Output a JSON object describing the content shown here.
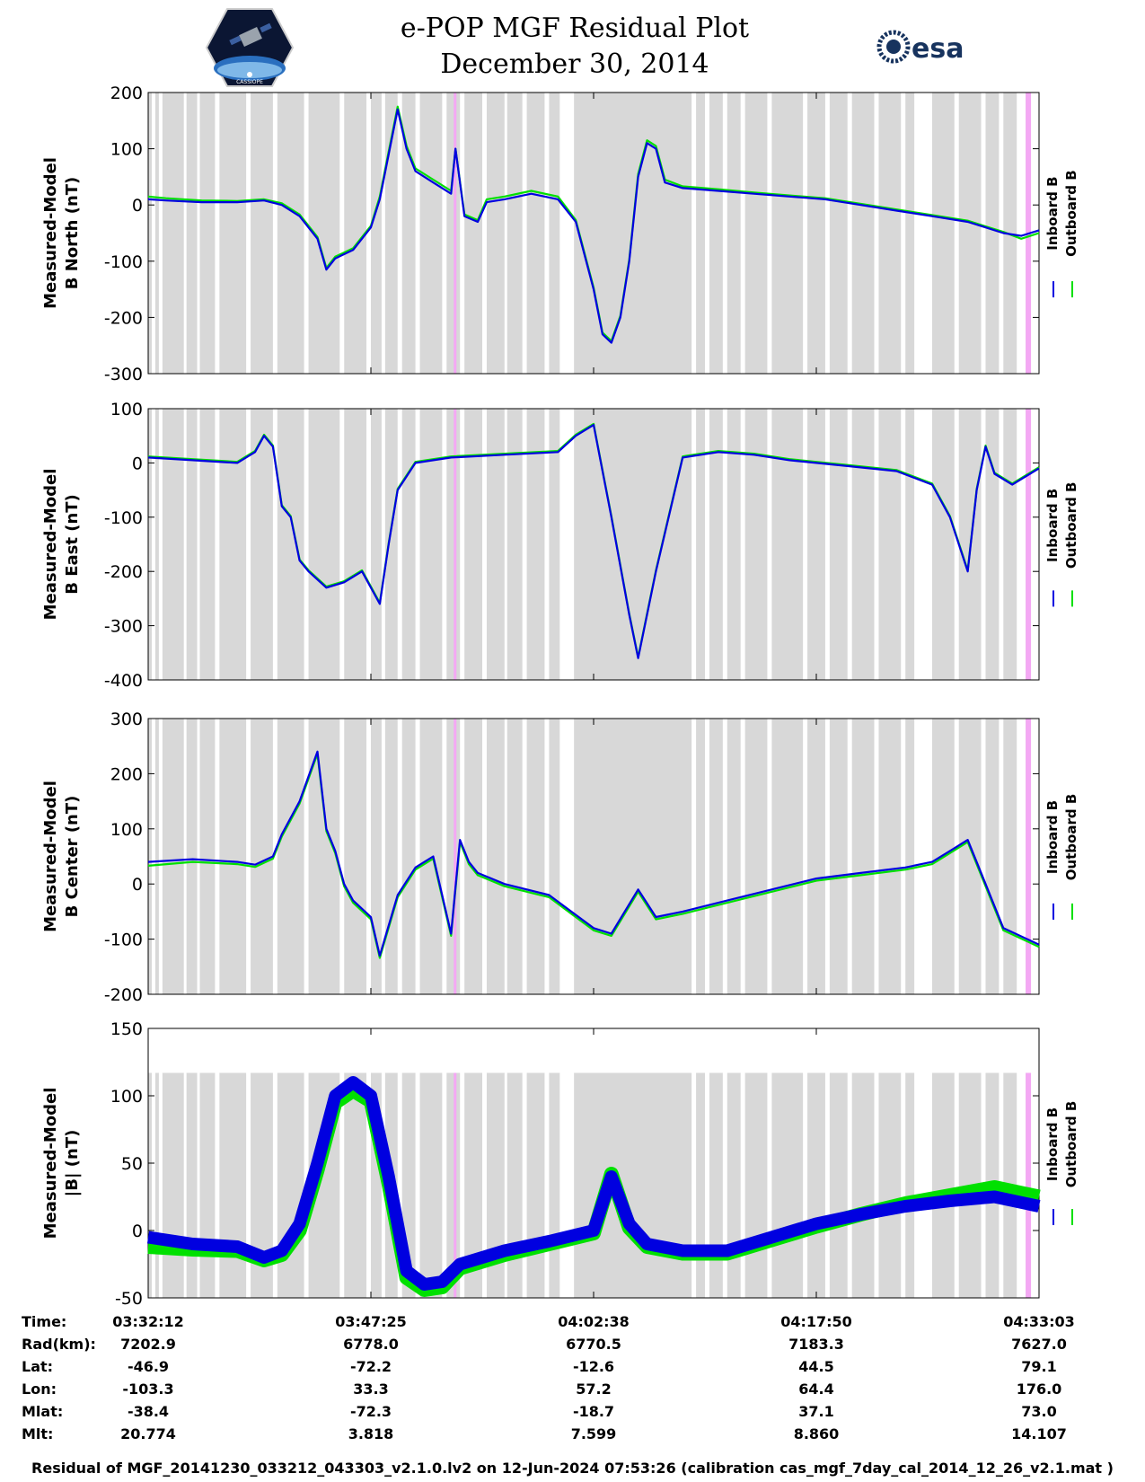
{
  "header": {
    "title_line1": "e-POP MGF Residual Plot",
    "title_line2": "December 30, 2014",
    "logo_left": "CASSIOPE",
    "logo_right": "esa"
  },
  "legend": {
    "inboard": "Inboard B",
    "outboard": "Outboard B"
  },
  "colors": {
    "inboard": "#0000e0",
    "outboard": "#00e000",
    "shade": "#d8d8d8",
    "pink": "#f4a8f4"
  },
  "chart_data": [
    {
      "type": "line",
      "ylabel_line1": "Measured-Model",
      "ylabel_line2": "B North (nT)",
      "ylim": [
        -300,
        200
      ],
      "yticks": [
        200,
        100,
        0,
        -100,
        -200,
        -300
      ],
      "series": [
        {
          "name": "Inboard B",
          "x": [
            0,
            0.02,
            0.06,
            0.1,
            0.13,
            0.15,
            0.17,
            0.19,
            0.2,
            0.21,
            0.23,
            0.25,
            0.26,
            0.27,
            0.28,
            0.29,
            0.3,
            0.32,
            0.34,
            0.345,
            0.355,
            0.37,
            0.38,
            0.4,
            0.43,
            0.46,
            0.48,
            0.5,
            0.51,
            0.52,
            0.53,
            0.54,
            0.55,
            0.56,
            0.57,
            0.58,
            0.6,
            0.64,
            0.68,
            0.72,
            0.76,
            0.8,
            0.84,
            0.88,
            0.92,
            0.94,
            0.96,
            0.98,
            1
          ],
          "values": [
            10,
            8,
            5,
            5,
            8,
            0,
            -20,
            -60,
            -115,
            -95,
            -80,
            -40,
            10,
            90,
            170,
            100,
            60,
            40,
            20,
            100,
            -20,
            -30,
            5,
            10,
            20,
            10,
            -30,
            -150,
            -230,
            -245,
            -200,
            -100,
            50,
            110,
            100,
            40,
            30,
            25,
            20,
            15,
            10,
            0,
            -10,
            -20,
            -30,
            -40,
            -50,
            -55,
            -45
          ]
        },
        {
          "name": "Outboard B",
          "x": [
            0,
            0.02,
            0.06,
            0.1,
            0.13,
            0.15,
            0.17,
            0.19,
            0.2,
            0.21,
            0.23,
            0.25,
            0.26,
            0.27,
            0.28,
            0.29,
            0.3,
            0.32,
            0.34,
            0.345,
            0.355,
            0.37,
            0.38,
            0.4,
            0.43,
            0.46,
            0.48,
            0.5,
            0.51,
            0.52,
            0.53,
            0.54,
            0.55,
            0.56,
            0.57,
            0.58,
            0.6,
            0.64,
            0.68,
            0.72,
            0.76,
            0.8,
            0.84,
            0.88,
            0.92,
            0.94,
            0.96,
            0.98,
            1
          ],
          "values": [
            15,
            12,
            8,
            7,
            10,
            3,
            -17,
            -57,
            -112,
            -92,
            -77,
            -37,
            15,
            95,
            175,
            105,
            65,
            45,
            25,
            100,
            -17,
            -27,
            10,
            15,
            25,
            15,
            -27,
            -147,
            -227,
            -242,
            -197,
            -97,
            55,
            115,
            105,
            45,
            33,
            28,
            22,
            17,
            12,
            2,
            -8,
            -18,
            -28,
            -38,
            -48,
            -60,
            -50
          ]
        }
      ]
    },
    {
      "type": "line",
      "ylabel_line1": "Measured-Model",
      "ylabel_line2": "B East (nT)",
      "ylim": [
        -400,
        100
      ],
      "yticks": [
        100,
        0,
        -100,
        -200,
        -300,
        -400
      ],
      "series": [
        {
          "name": "Inboard B",
          "x": [
            0,
            0.05,
            0.1,
            0.12,
            0.13,
            0.14,
            0.15,
            0.16,
            0.17,
            0.18,
            0.2,
            0.22,
            0.24,
            0.26,
            0.27,
            0.28,
            0.3,
            0.34,
            0.4,
            0.46,
            0.48,
            0.5,
            0.52,
            0.54,
            0.55,
            0.57,
            0.6,
            0.64,
            0.68,
            0.72,
            0.78,
            0.84,
            0.88,
            0.9,
            0.92,
            0.93,
            0.94,
            0.95,
            0.97,
            1
          ],
          "values": [
            10,
            5,
            0,
            20,
            50,
            30,
            -80,
            -100,
            -180,
            -200,
            -230,
            -220,
            -200,
            -260,
            -150,
            -50,
            0,
            10,
            15,
            20,
            50,
            70,
            -100,
            -280,
            -360,
            -200,
            10,
            20,
            15,
            5,
            -5,
            -15,
            -40,
            -100,
            -200,
            -50,
            30,
            -20,
            -40,
            -10
          ]
        },
        {
          "name": "Outboard B",
          "x": [
            0,
            0.05,
            0.1,
            0.12,
            0.13,
            0.14,
            0.15,
            0.16,
            0.17,
            0.18,
            0.2,
            0.22,
            0.24,
            0.26,
            0.27,
            0.28,
            0.3,
            0.34,
            0.4,
            0.46,
            0.48,
            0.5,
            0.52,
            0.54,
            0.55,
            0.57,
            0.6,
            0.64,
            0.68,
            0.72,
            0.78,
            0.84,
            0.88,
            0.9,
            0.92,
            0.93,
            0.94,
            0.95,
            0.97,
            1
          ],
          "values": [
            12,
            7,
            2,
            22,
            52,
            32,
            -78,
            -98,
            -178,
            -198,
            -228,
            -218,
            -198,
            -258,
            -148,
            -48,
            2,
            12,
            17,
            22,
            52,
            72,
            -98,
            -278,
            -358,
            -198,
            12,
            22,
            17,
            7,
            -3,
            -13,
            -38,
            -98,
            -198,
            -48,
            32,
            -18,
            -38,
            -8
          ]
        }
      ]
    },
    {
      "type": "line",
      "ylabel_line1": "Measured-Model",
      "ylabel_line2": "B Center (nT)",
      "ylim": [
        -200,
        300
      ],
      "yticks": [
        300,
        200,
        100,
        0,
        -100,
        -200
      ],
      "series": [
        {
          "name": "Inboard B",
          "x": [
            0,
            0.05,
            0.1,
            0.12,
            0.14,
            0.15,
            0.17,
            0.19,
            0.2,
            0.21,
            0.22,
            0.23,
            0.25,
            0.26,
            0.28,
            0.3,
            0.32,
            0.34,
            0.35,
            0.36,
            0.37,
            0.4,
            0.45,
            0.5,
            0.52,
            0.55,
            0.57,
            0.6,
            0.65,
            0.7,
            0.75,
            0.8,
            0.85,
            0.88,
            0.9,
            0.92,
            0.94,
            0.96,
            1
          ],
          "values": [
            40,
            45,
            40,
            35,
            50,
            90,
            150,
            240,
            100,
            60,
            0,
            -30,
            -60,
            -130,
            -20,
            30,
            50,
            -90,
            80,
            40,
            20,
            0,
            -20,
            -80,
            -90,
            -10,
            -60,
            -50,
            -30,
            -10,
            10,
            20,
            30,
            40,
            60,
            80,
            0,
            -80,
            -110
          ]
        },
        {
          "name": "Outboard B",
          "x": [
            0,
            0.05,
            0.1,
            0.12,
            0.14,
            0.15,
            0.17,
            0.19,
            0.2,
            0.21,
            0.22,
            0.23,
            0.25,
            0.26,
            0.28,
            0.3,
            0.32,
            0.34,
            0.35,
            0.36,
            0.37,
            0.4,
            0.45,
            0.5,
            0.52,
            0.55,
            0.57,
            0.6,
            0.65,
            0.7,
            0.75,
            0.8,
            0.85,
            0.88,
            0.9,
            0.92,
            0.94,
            0.96,
            1
          ],
          "values": [
            33,
            40,
            36,
            31,
            46,
            86,
            146,
            236,
            96,
            56,
            -4,
            -34,
            -64,
            -134,
            -24,
            26,
            46,
            -94,
            76,
            36,
            16,
            -4,
            -24,
            -84,
            -94,
            -14,
            -64,
            -54,
            -34,
            -14,
            6,
            16,
            26,
            36,
            56,
            76,
            -4,
            -84,
            -114
          ]
        }
      ]
    },
    {
      "type": "line",
      "ylabel_line1": "Measured-Model",
      "ylabel_line2": "|B| (nT)",
      "ylim": [
        -50,
        150
      ],
      "yticks": [
        150,
        100,
        50,
        0,
        -50
      ],
      "series": [
        {
          "name": "Inboard B",
          "x": [
            0,
            0.05,
            0.1,
            0.13,
            0.15,
            0.17,
            0.19,
            0.21,
            0.23,
            0.25,
            0.27,
            0.29,
            0.31,
            0.33,
            0.35,
            0.4,
            0.45,
            0.5,
            0.52,
            0.54,
            0.56,
            0.6,
            0.65,
            0.7,
            0.75,
            0.8,
            0.85,
            0.9,
            0.95,
            1
          ],
          "values": [
            -5,
            -10,
            -12,
            -20,
            -15,
            5,
            50,
            100,
            110,
            100,
            40,
            -30,
            -40,
            -38,
            -25,
            -15,
            -8,
            0,
            40,
            5,
            -10,
            -15,
            -15,
            -5,
            5,
            12,
            18,
            22,
            25,
            18
          ]
        },
        {
          "name": "Outboard B",
          "x": [
            0,
            0.05,
            0.1,
            0.13,
            0.15,
            0.17,
            0.19,
            0.21,
            0.23,
            0.25,
            0.27,
            0.29,
            0.31,
            0.33,
            0.35,
            0.4,
            0.45,
            0.5,
            0.52,
            0.54,
            0.56,
            0.6,
            0.65,
            0.7,
            0.75,
            0.8,
            0.85,
            0.9,
            0.95,
            1
          ],
          "values": [
            -12,
            -14,
            -15,
            -22,
            -18,
            0,
            45,
            95,
            104,
            96,
            35,
            -35,
            -44,
            -42,
            -28,
            -18,
            -10,
            -2,
            42,
            2,
            -12,
            -17,
            -17,
            -7,
            3,
            12,
            20,
            26,
            32,
            25
          ]
        }
      ]
    }
  ],
  "xaxis": {
    "ticks": [
      "03:32:12",
      "03:47:25",
      "04:02:38",
      "04:17:50",
      "04:33:03"
    ]
  },
  "info_table": {
    "rows": [
      {
        "label": "Time:",
        "values": [
          "03:32:12",
          "03:47:25",
          "04:02:38",
          "04:17:50",
          "04:33:03"
        ]
      },
      {
        "label": "Rad(km):",
        "values": [
          "7202.9",
          "6778.0",
          "6770.5",
          "7183.3",
          "7627.0"
        ]
      },
      {
        "label": "Lat:",
        "values": [
          "-46.9",
          "-72.2",
          "-12.6",
          "44.5",
          "79.1"
        ]
      },
      {
        "label": "Lon:",
        "values": [
          "-103.3",
          "33.3",
          "57.2",
          "64.4",
          "176.0"
        ]
      },
      {
        "label": "Mlat:",
        "values": [
          "-38.4",
          "-72.3",
          "-18.7",
          "37.1",
          "73.0"
        ]
      },
      {
        "label": "Mlt:",
        "values": [
          "20.774",
          "3.818",
          "7.599",
          "8.860",
          "14.107"
        ]
      }
    ]
  },
  "footer": "Residual of MGF_20141230_033212_043303_v2.1.0.lv2 on 12-Jun-2024 07:53:26 (calibration cas_mgf_7day_cal_2014_12_26_v2.1.mat )"
}
